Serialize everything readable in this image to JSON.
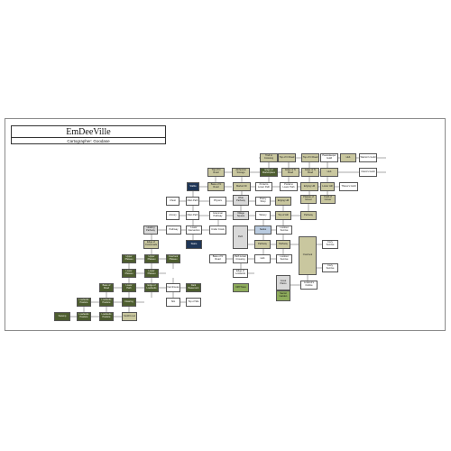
{
  "header": {
    "title": "EmDeeVille",
    "subtitle": "Cartographer: Goodase"
  },
  "nodes": [
    {
      "id": "n1",
      "label": "Trail to Crossing",
      "type": "tan"
    },
    {
      "id": "n2",
      "label": "Top of N Road",
      "type": "tan"
    },
    {
      "id": "n3",
      "label": "Top of N Road",
      "type": "tan"
    },
    {
      "id": "n4",
      "label": "Peacekeeper Guild",
      "type": "white"
    },
    {
      "id": "n5",
      "label": "Hub",
      "type": "tan"
    },
    {
      "id": "n6",
      "label": "Warrior's Guild",
      "type": "white"
    },
    {
      "id": "n7",
      "label": "Top of N Road",
      "type": "tan"
    },
    {
      "id": "n8",
      "label": "Alchemist Storage",
      "type": "tan"
    },
    {
      "id": "n9",
      "label": "Edge of Marketplace",
      "type": "dark"
    },
    {
      "id": "n10",
      "label": "Edge of N Road",
      "type": "tan"
    },
    {
      "id": "n11",
      "label": "Edge of N Road",
      "type": "tan"
    },
    {
      "id": "n12",
      "label": "Hub",
      "type": "tan"
    },
    {
      "id": "n13",
      "label": "Cleric's Guild",
      "type": "white"
    },
    {
      "id": "n14",
      "label": "Base of N Road",
      "type": "tan"
    },
    {
      "id": "n15",
      "label": "Market Dir",
      "type": "tan"
    },
    {
      "id": "n16",
      "label": "Portal to Lower Path",
      "type": "white"
    },
    {
      "id": "n17",
      "label": "Portal to Lower Path",
      "type": "white"
    },
    {
      "id": "n18",
      "label": "Edging Hill",
      "type": "tan"
    },
    {
      "id": "n19",
      "label": "Lower Hill",
      "type": "tan"
    },
    {
      "id": "n20",
      "label": "Thieve's Guild",
      "type": "white"
    },
    {
      "id": "n21",
      "label": "Stable",
      "type": "navy"
    },
    {
      "id": "n22",
      "label": "Chest",
      "type": "white"
    },
    {
      "id": "n23",
      "label": "Main Path",
      "type": "white"
    },
    {
      "id": "n24",
      "label": "Physics",
      "type": "white"
    },
    {
      "id": "n25",
      "label": "Wide Pathway",
      "type": "grey"
    },
    {
      "id": "n26",
      "label": "Poetry Shop",
      "type": "white"
    },
    {
      "id": "n27",
      "label": "Edging Hill",
      "type": "tan"
    },
    {
      "id": "n28",
      "label": "Plateau of Glover",
      "type": "tan"
    },
    {
      "id": "n29",
      "label": "Field of Glover",
      "type": "tan"
    },
    {
      "id": "n30",
      "label": "Armory",
      "type": "white"
    },
    {
      "id": "n31",
      "label": "Main Path",
      "type": "white"
    },
    {
      "id": "n32",
      "label": "Grammar Pathway",
      "type": "white"
    },
    {
      "id": "n33",
      "label": "Village Square",
      "type": "grey"
    },
    {
      "id": "n34",
      "label": "Winery",
      "type": "white"
    },
    {
      "id": "n35",
      "label": "Top of Hill",
      "type": "tan"
    },
    {
      "id": "n36",
      "label": "Pathway",
      "type": "tan"
    },
    {
      "id": "n37",
      "label": "Healing Pathway",
      "type": "grey"
    },
    {
      "id": "n38",
      "label": "Pathway",
      "type": "white"
    },
    {
      "id": "n39",
      "label": "Lower Intersection",
      "type": "white"
    },
    {
      "id": "n40",
      "label": "Under Creek",
      "type": "white"
    },
    {
      "id": "n41",
      "label": "Path",
      "type": "grey"
    },
    {
      "id": "n42",
      "label": "Sadus",
      "type": "blue"
    },
    {
      "id": "n43",
      "label": "Lookout Sunrise",
      "type": "white"
    },
    {
      "id": "n44",
      "label": "Edge of Crossroads",
      "type": "tan"
    },
    {
      "id": "n45",
      "label": "Stairs",
      "type": "navy"
    },
    {
      "id": "n46",
      "label": "Pathway",
      "type": "tan"
    },
    {
      "id": "n47",
      "label": "Pathway",
      "type": "tan"
    },
    {
      "id": "n48",
      "label": "Cozy Sunrise",
      "type": "white"
    },
    {
      "id": "n49",
      "label": "Upper Plateau",
      "type": "dark"
    },
    {
      "id": "n50",
      "label": "Upper Plateau",
      "type": "dark"
    },
    {
      "id": "n51",
      "label": "Base of N Road",
      "type": "white"
    },
    {
      "id": "n52",
      "label": "Path Lower Crossing",
      "type": "white"
    },
    {
      "id": "n53",
      "label": "Hub",
      "type": "white"
    },
    {
      "id": "n54",
      "label": "Lookout Sunrise",
      "type": "white"
    },
    {
      "id": "n55",
      "label": "Overlook",
      "type": "tan"
    },
    {
      "id": "n56",
      "label": "Lower Plateau",
      "type": "dark"
    },
    {
      "id": "n57",
      "label": "Lower Plateau",
      "type": "dark"
    },
    {
      "id": "n58",
      "label": "Overlook Plateau",
      "type": "dark"
    },
    {
      "id": "n59",
      "label": "Edge of Lowlands",
      "type": "white"
    },
    {
      "id": "n60",
      "label": "Cozy Sunrise",
      "type": "white"
    },
    {
      "id": "n61",
      "label": "Base of Road",
      "type": "dark"
    },
    {
      "id": "n62",
      "label": "Lower Path",
      "type": "dark"
    },
    {
      "id": "n63",
      "label": "Edge of Lowlands",
      "type": "dark"
    },
    {
      "id": "n64",
      "label": "Farmhouse",
      "type": "white"
    },
    {
      "id": "n65",
      "label": "Dark Basement",
      "type": "dark"
    },
    {
      "id": "n66",
      "label": "Cliff Trees",
      "type": "green"
    },
    {
      "id": "n67",
      "label": "Great Plains",
      "type": "grey"
    },
    {
      "id": "n68",
      "label": "Lookout's Outline",
      "type": "white"
    },
    {
      "id": "n69",
      "label": "Lowlands Pasture",
      "type": "dark"
    },
    {
      "id": "n70",
      "label": "Lowlands Pasture",
      "type": "dark"
    },
    {
      "id": "n71",
      "label": "Clearing",
      "type": "dark"
    },
    {
      "id": "n72",
      "label": "Silo",
      "type": "white"
    },
    {
      "id": "n73",
      "label": "Top of Silo",
      "type": "white"
    },
    {
      "id": "n74",
      "label": "Secret Garden",
      "type": "green"
    },
    {
      "id": "n75",
      "label": "Swamp",
      "type": "dark"
    },
    {
      "id": "n76",
      "label": "Lowlands Pasture",
      "type": "dark"
    },
    {
      "id": "n77",
      "label": "Lowlands Pasture",
      "type": "dark"
    },
    {
      "id": "n78",
      "label": "Smith's Lot",
      "type": "tan"
    }
  ]
}
